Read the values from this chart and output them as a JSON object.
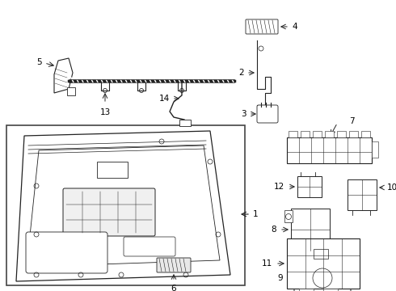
{
  "bg_color": "#ffffff",
  "line_color": "#222222",
  "label_fontsize": 7.5,
  "text_color": "#000000",
  "figsize": [
    4.9,
    3.6
  ],
  "dpi": 100
}
